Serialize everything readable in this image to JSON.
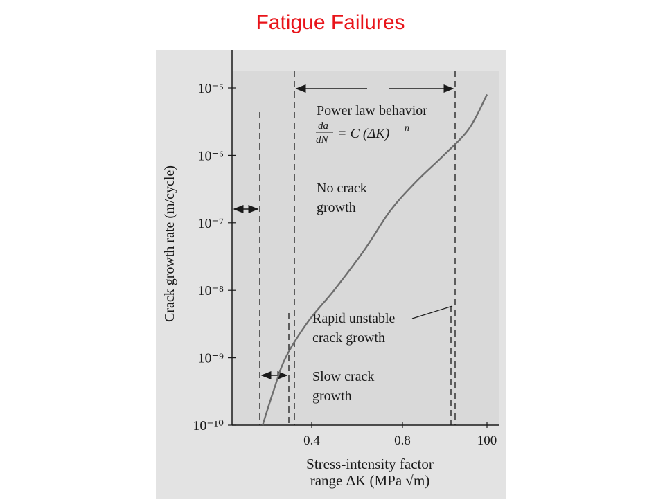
{
  "slide": {
    "title": "Fatigue Failures"
  },
  "colors": {
    "title": "#e8141a",
    "page": "#e3e3e3",
    "plot_area": "#d9d9d9",
    "curve": "#6e6e6e",
    "ink": "#1a1a1a"
  },
  "chart_data": {
    "type": "line",
    "title": "",
    "xlabel_line1": "Stress-intensity factor",
    "xlabel_line2": "range ΔK (MPa √m)",
    "ylabel": "Crack growth rate (m/cycle)",
    "y_scale": "log",
    "ylim": [
      1e-10,
      1e-05
    ],
    "y_ticks": [
      {
        "value": 1e-10,
        "label": "10⁻¹⁰"
      },
      {
        "value": 1e-09,
        "label": "10⁻⁹"
      },
      {
        "value": 1e-08,
        "label": "10⁻⁸"
      },
      {
        "value": 1e-07,
        "label": "10⁻⁷"
      },
      {
        "value": 1e-06,
        "label": "10⁻⁶"
      },
      {
        "value": 1e-05,
        "label": "10⁻⁵"
      }
    ],
    "x_ticks": [
      "0.4",
      "0.8",
      "100"
    ],
    "grid": false,
    "series": [
      {
        "points": [
          {
            "x": 0.12,
            "y": 1e-10
          },
          {
            "x": 0.16,
            "y": 3e-10
          },
          {
            "x": 0.21,
            "y": 1e-09
          },
          {
            "x": 0.3,
            "y": 3.5e-09
          },
          {
            "x": 0.4,
            "y": 1e-08
          },
          {
            "x": 0.52,
            "y": 4e-08
          },
          {
            "x": 0.62,
            "y": 1.5e-07
          },
          {
            "x": 0.72,
            "y": 4e-07
          },
          {
            "x": 0.83,
            "y": 1e-06
          },
          {
            "x": 0.93,
            "y": 2.5e-06
          },
          {
            "x": 1.0,
            "y": 8e-06
          }
        ]
      }
    ],
    "annotations": {
      "power_law_title": "Power law behavior",
      "power_law_lhs_num": "da",
      "power_law_lhs_den": "dN",
      "power_law_rhs": "= C (ΔK)",
      "power_law_exp": "n",
      "no_crack_line1": "No crack",
      "no_crack_line2": "growth",
      "rapid_line1": "Rapid unstable",
      "rapid_line2": "crack growth",
      "slow_line1": "Slow crack",
      "slow_line2": "growth"
    }
  }
}
